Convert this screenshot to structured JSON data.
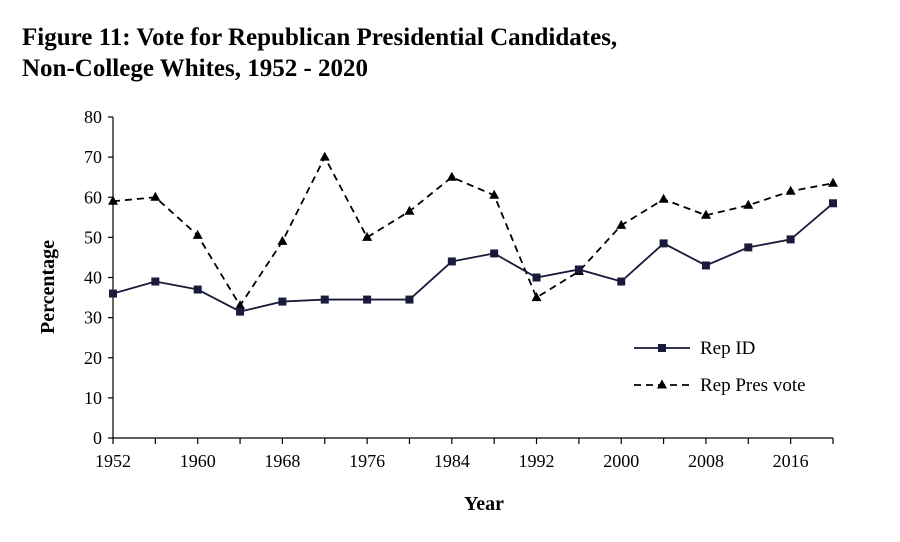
{
  "chart_data": {
    "type": "line",
    "title_lines": [
      "Figure 11: Vote for Republican Presidential Candidates,",
      "Non-College Whites, 1952 - 2020"
    ],
    "xlabel": "Year",
    "ylabel": "Percentage",
    "ylim": [
      0,
      80
    ],
    "yticks": [
      0,
      10,
      20,
      30,
      40,
      50,
      60,
      70,
      80
    ],
    "xlim": [
      1952,
      2020
    ],
    "xticks": [
      1952,
      1960,
      1968,
      1976,
      1984,
      1992,
      2000,
      2008,
      2016
    ],
    "x": [
      1952,
      1956,
      1960,
      1964,
      1968,
      1972,
      1976,
      1980,
      1984,
      1988,
      1992,
      1996,
      2000,
      2004,
      2008,
      2012,
      2016,
      2020
    ],
    "series": [
      {
        "name": "Rep ID",
        "marker": "square",
        "line": "solid",
        "color": "#1a1a3a",
        "values": [
          36,
          39,
          37,
          31.5,
          34,
          34.5,
          34.5,
          34.5,
          44,
          46,
          40,
          42,
          39,
          48.5,
          43,
          47.5,
          49.5,
          58.5
        ]
      },
      {
        "name": "Rep Pres vote",
        "marker": "triangle",
        "line": "dashed",
        "color": "#000000",
        "values": [
          59,
          60,
          50.5,
          33,
          49,
          70,
          50,
          56.5,
          65,
          60.5,
          35,
          41.5,
          53,
          59.5,
          55.5,
          58,
          61.5,
          63.5
        ]
      }
    ],
    "legend": "right-middle",
    "grid": false
  }
}
